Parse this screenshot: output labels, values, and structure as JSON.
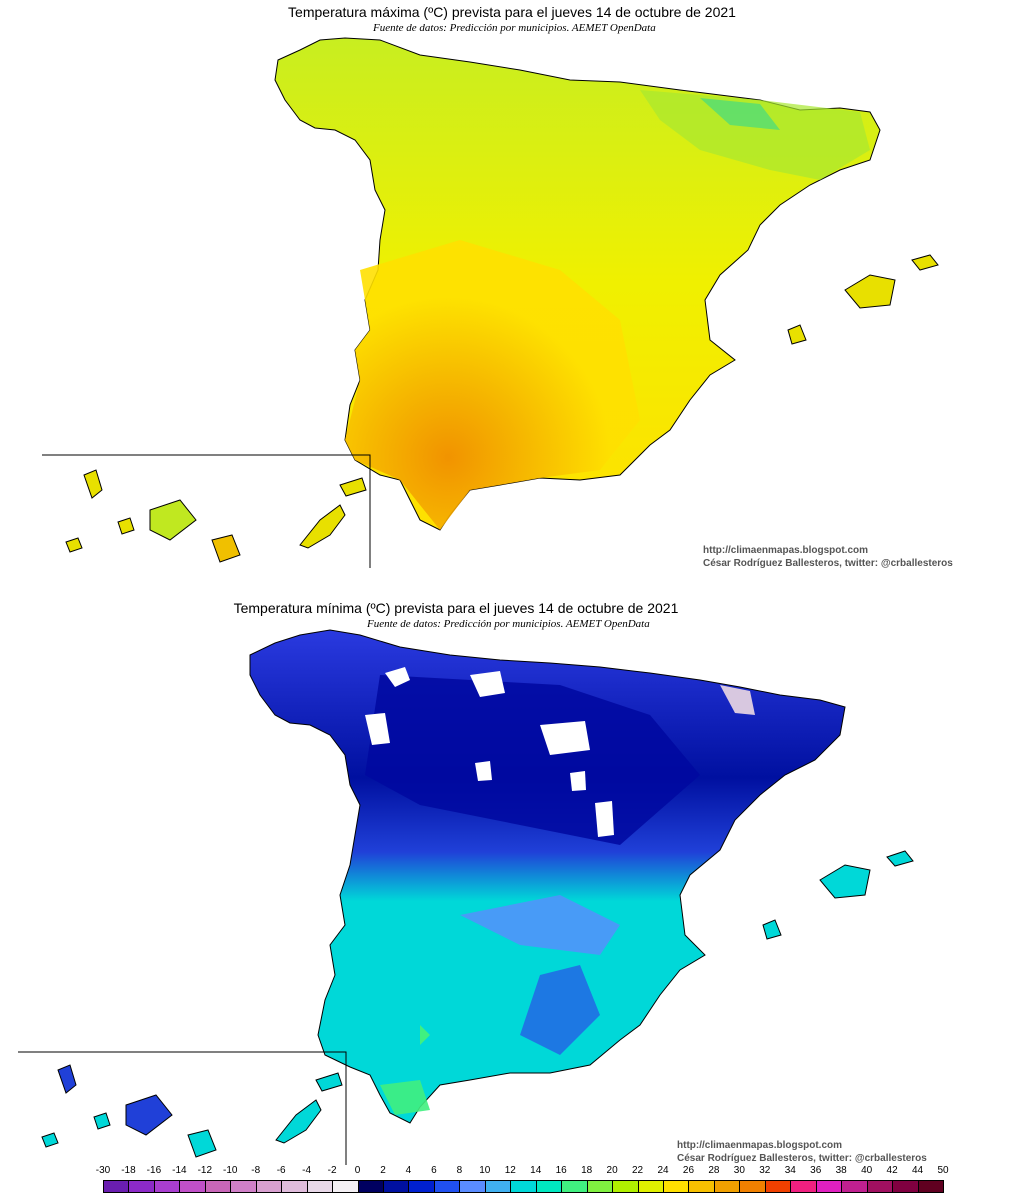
{
  "maps": {
    "max": {
      "title": "Temperatura máxima (ºC) prevista para el jueves 14 de octubre de 2021",
      "subtitle": "Fuente de datos: Predicción por municipios. AEMET OpenData",
      "credit_url": "http://climaenmapas.blogspot.com",
      "credit_author": "César Rodríguez Ballesteros, twitter: @crballesteros",
      "dominant_colors": [
        "#ffe000",
        "#f7c000",
        "#e8e000",
        "#9ef000",
        "#f08a00"
      ]
    },
    "min": {
      "title": "Temperatura mínima (ºC) prevista para el jueves 14 de octubre de 2021",
      "subtitle": "Fuente de datos: Predicción por municipios. AEMET OpenData",
      "credit_url": "http://climaenmapas.blogspot.com",
      "credit_author": "César Rodríguez Ballesteros, twitter: @crballesteros",
      "dominant_colors": [
        "#00d8d8",
        "#5a8cff",
        "#2a3ae0",
        "#0010a0",
        "#ffffff"
      ]
    }
  },
  "legend": {
    "labels": [
      "-30",
      "-18",
      "-16",
      "-14",
      "-12",
      "-10",
      "-8",
      "-6",
      "-4",
      "-2",
      "0",
      "2",
      "4",
      "6",
      "8",
      "10",
      "12",
      "14",
      "16",
      "18",
      "20",
      "22",
      "24",
      "26",
      "28",
      "30",
      "32",
      "34",
      "36",
      "38",
      "40",
      "42",
      "44",
      "50"
    ],
    "colors": [
      "#6a1eb0",
      "#8c2ac8",
      "#a83ed0",
      "#c050c8",
      "#c866b8",
      "#d080c8",
      "#d8a0d0",
      "#e0bcdc",
      "#e8d8e8",
      "#f4f0f4",
      "#000060",
      "#0010a0",
      "#0020d0",
      "#2050f0",
      "#5a8cff",
      "#40b0f0",
      "#00d8d8",
      "#00e8c0",
      "#40f080",
      "#80f040",
      "#b0f000",
      "#e0f000",
      "#ffe000",
      "#f7c000",
      "#f0a000",
      "#f08000",
      "#f04000",
      "#f02080",
      "#e020c0",
      "#c02090",
      "#a01060",
      "#800040",
      "#600020"
    ]
  }
}
